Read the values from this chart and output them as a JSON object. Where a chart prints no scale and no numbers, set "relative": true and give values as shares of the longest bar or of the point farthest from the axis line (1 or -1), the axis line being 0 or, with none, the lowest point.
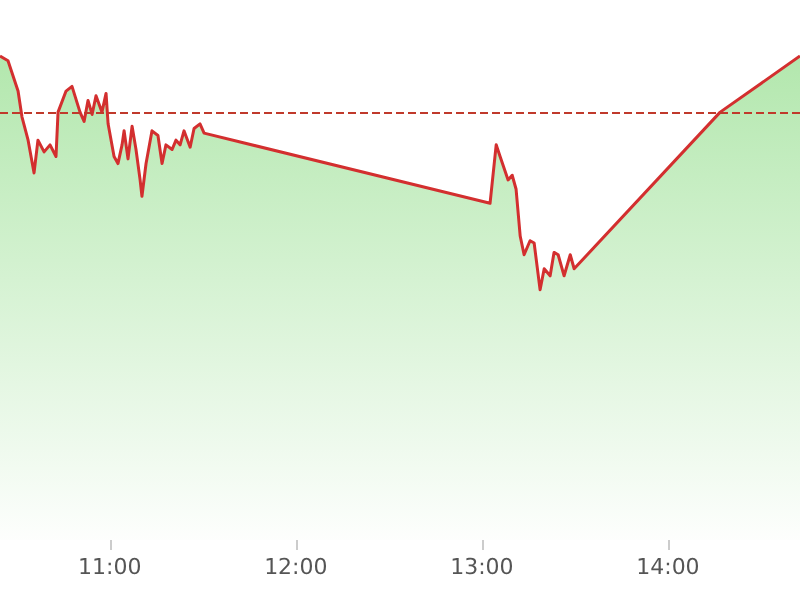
{
  "chart_data": {
    "type": "area",
    "relative": true,
    "marker": "none",
    "line_style": "solid",
    "grid": false,
    "x": [
      10.41,
      10.453,
      10.507,
      10.528,
      10.561,
      10.593,
      10.614,
      10.647,
      10.679,
      10.711,
      10.722,
      10.765,
      10.797,
      10.84,
      10.862,
      10.883,
      10.905,
      10.926,
      10.958,
      10.98,
      10.991,
      11.023,
      11.044,
      11.066,
      11.077,
      11.098,
      11.12,
      11.141,
      11.163,
      11.173,
      11.195,
      11.227,
      11.259,
      11.281,
      11.302,
      11.335,
      11.356,
      11.378,
      11.399,
      11.432,
      11.453,
      11.485,
      11.507,
      13.044,
      13.077,
      13.098,
      13.141,
      13.163,
      13.184,
      13.206,
      13.227,
      13.259,
      13.281,
      13.313,
      13.335,
      13.367,
      13.388,
      13.41,
      13.442,
      13.475,
      13.496,
      14.281,
      14.71
    ],
    "xlim": [
      10.41,
      14.71
    ],
    "xticks": [
      {
        "value": 11,
        "label": "11:00"
      },
      {
        "value": 12,
        "label": "12:00"
      },
      {
        "value": 13,
        "label": "13:00"
      },
      {
        "value": 14,
        "label": "14:00"
      }
    ],
    "series": [
      {
        "color": "#d32f2f",
        "values": [
          1.0,
          0.98,
          0.85,
          0.74,
          0.64,
          0.5,
          0.64,
          0.59,
          0.62,
          0.57,
          0.76,
          0.85,
          0.87,
          0.76,
          0.72,
          0.81,
          0.75,
          0.83,
          0.76,
          0.84,
          0.71,
          0.57,
          0.54,
          0.62,
          0.68,
          0.56,
          0.7,
          0.6,
          0.47,
          0.4,
          0.54,
          0.68,
          0.66,
          0.54,
          0.62,
          0.6,
          0.64,
          0.62,
          0.68,
          0.61,
          0.69,
          0.71,
          0.67,
          0.37,
          0.62,
          0.57,
          0.47,
          0.49,
          0.43,
          0.23,
          0.15,
          0.21,
          0.2,
          0,
          0.09,
          0.06,
          0.16,
          0.15,
          0.06,
          0.15,
          0.09,
          0.76,
          1.0
        ]
      }
    ],
    "ref_lines": [
      {
        "axis": "y",
        "value": 0.76,
        "color": "#c0392b",
        "line_style": "dashed"
      }
    ]
  }
}
